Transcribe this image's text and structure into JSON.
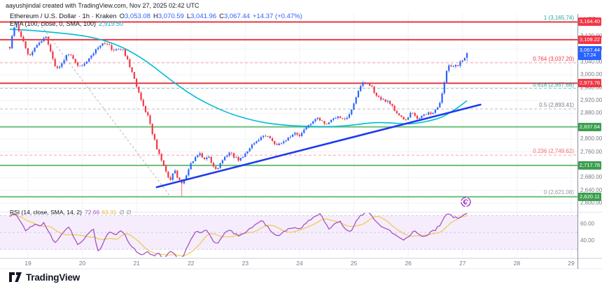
{
  "page": {
    "attribution": "aayushjindal created with TradingView.com, Nov 27, 2025 02:42 UTC",
    "brand": "TradingView"
  },
  "main_legend": {
    "title": "Ethereum / U.S. Dollar · 1h · Kraken",
    "o_label": "O",
    "o": "3,053.08",
    "h_label": "H",
    "h": "3,070.59",
    "l_label": "L",
    "l": "3,041.96",
    "c_label": "C",
    "c": "3,067.44",
    "change": "+14.37 (+0.47%)"
  },
  "ema_legend": {
    "label": "EMA (100, close, 0, SMA, 100)",
    "value": "2,919.50"
  },
  "rsi_legend": {
    "label": "RSI (14, close, SMA, 14, 2)",
    "rsi_value": "72.66",
    "ma_value": "63.31",
    "hidden_values": "∅ ∅"
  },
  "price_scale": {
    "currency": "USD",
    "labels": [
      {
        "text": "3,120.00",
        "price": 3120
      },
      {
        "text": "3,080.00",
        "price": 3080
      },
      {
        "text": "3,040.00",
        "price": 3040
      },
      {
        "text": "3,000.00",
        "price": 3000
      },
      {
        "text": "2,960.00",
        "price": 2960
      },
      {
        "text": "2,920.00",
        "price": 2920
      },
      {
        "text": "2,880.00",
        "price": 2880
      },
      {
        "text": "2,800.00",
        "price": 2800
      },
      {
        "text": "2,760.00",
        "price": 2760
      },
      {
        "text": "2,680.00",
        "price": 2680
      },
      {
        "text": "2,640.00",
        "price": 2640
      },
      {
        "text": "2,600.00",
        "price": 2600
      }
    ],
    "rsi_labels": [
      {
        "text": "60.00",
        "value": 60
      },
      {
        "text": "40.00",
        "value": 40
      }
    ],
    "chips": [
      {
        "text": "3,164.40",
        "price": 3164.4,
        "color": "#f23645"
      },
      {
        "text": "3,109.22",
        "price": 3109.22,
        "color": "#f23645"
      },
      {
        "text": "3,067.44",
        "sub": "17:24",
        "price": 3067.44,
        "color": "#2962ff"
      },
      {
        "text": "2,973.76",
        "price": 2973.76,
        "color": "#f23645"
      },
      {
        "text": "2,837.64",
        "price": 2837.64,
        "color": "#3b9e4f"
      },
      {
        "text": "2,717.78",
        "price": 2717.78,
        "color": "#3b9e4f"
      },
      {
        "text": "2,620.11",
        "price": 2620.11,
        "color": "#3b9e4f"
      }
    ]
  },
  "time_axis": [
    {
      "text": "19",
      "day": 19
    },
    {
      "text": "20",
      "day": 20
    },
    {
      "text": "21",
      "day": 21
    },
    {
      "text": "22",
      "day": 22
    },
    {
      "text": "23",
      "day": 23
    },
    {
      "text": "24",
      "day": 24
    },
    {
      "text": "25",
      "day": 25
    },
    {
      "text": "26",
      "day": 26
    },
    {
      "text": "27",
      "day": 27
    },
    {
      "text": "28",
      "day": 28
    },
    {
      "text": "29",
      "day": 29
    }
  ],
  "chart_data": {
    "type": "candlestick",
    "title": "Ethereum / U.S. Dollar",
    "interval": "1h",
    "exchange": "Kraken",
    "price_axis": {
      "min": 2574,
      "max": 3172,
      "grid_step": 40
    },
    "time_axis_days": [
      18.665,
      29.1
    ],
    "last": {
      "open": 3053.08,
      "high": 3070.59,
      "low": 3041.96,
      "close": 3067.44,
      "change": 14.37,
      "change_pct": 0.47,
      "countdown": "17:24"
    },
    "resistance_levels": [
      3164.4,
      3109.22,
      2973.76
    ],
    "support_levels": [
      2837.64,
      2717.78,
      2620.11
    ],
    "fib_retracement": {
      "baseline": {
        "from_day": 19.2,
        "from_price": 3162,
        "to_day": 21.62,
        "to_price": 2621.08
      },
      "levels": [
        {
          "ratio": "1",
          "price": 3165.74,
          "label": "1 (3,165.74)",
          "text_color": "#26a69a",
          "line_color": "rgba(242,54,69,0.45)"
        },
        {
          "ratio": "0.764",
          "price": 3037.2,
          "label": "0.764 (3,037.20)",
          "text_color": "#f23645",
          "line_color": "rgba(242,54,69,0.45)"
        },
        {
          "ratio": "0.618",
          "price": 2957.68,
          "label": "0.618 (2,957.68)",
          "text_color": "#26a69a",
          "line_color": "rgba(38,166,154,0.55)"
        },
        {
          "ratio": "0.5",
          "price": 2893.41,
          "label": "0.5 (2,893.41)",
          "text_color": "#787b86",
          "line_color": "rgba(120,123,134,0.5)"
        },
        {
          "ratio": "0.236",
          "price": 2749.62,
          "label": "0.236 (2,749.62)",
          "text_color": "#f26a6a",
          "line_color": "rgba(242,54,69,0.45)"
        },
        {
          "ratio": "0",
          "price": 2621.08,
          "label": "0 (2,621.08)",
          "text_color": "#9598a1",
          "line_color": "rgba(120,123,134,0.5)"
        }
      ]
    },
    "trendline": {
      "from_day": 21.37,
      "from_price": 2650,
      "to_day": 27.33,
      "to_price": 2907,
      "color": "#1e3af2"
    },
    "ema": {
      "period": 100,
      "color": "#00bcd4",
      "last_value": 2919.5,
      "points": [
        [
          18.665,
          3142
        ],
        [
          19.1,
          3138
        ],
        [
          19.4,
          3133
        ],
        [
          19.7,
          3128
        ],
        [
          20.0,
          3122
        ],
        [
          20.3,
          3112
        ],
        [
          20.6,
          3096
        ],
        [
          20.9,
          3072
        ],
        [
          21.2,
          3040
        ],
        [
          21.5,
          3000
        ],
        [
          21.8,
          2962
        ],
        [
          22.1,
          2928
        ],
        [
          22.4,
          2902
        ],
        [
          22.7,
          2880
        ],
        [
          23.0,
          2864
        ],
        [
          23.3,
          2852
        ],
        [
          23.6,
          2845
        ],
        [
          23.9,
          2841
        ],
        [
          24.2,
          2839
        ],
        [
          24.5,
          2838
        ],
        [
          24.8,
          2840
        ],
        [
          25.1,
          2846
        ],
        [
          25.4,
          2852
        ],
        [
          25.7,
          2850
        ],
        [
          26.0,
          2846
        ],
        [
          26.2,
          2850
        ],
        [
          26.4,
          2857
        ],
        [
          26.6,
          2866
        ],
        [
          26.8,
          2885
        ],
        [
          26.95,
          2902
        ],
        [
          27.08,
          2919.5
        ]
      ]
    },
    "price_path": [
      [
        18.665,
        3085
      ],
      [
        18.71,
        3122
      ],
      [
        18.75,
        3145
      ],
      [
        18.79,
        3150
      ],
      [
        18.84,
        3128
      ],
      [
        18.9,
        3108
      ],
      [
        18.96,
        3078
      ],
      [
        19.02,
        3058
      ],
      [
        19.08,
        3075
      ],
      [
        19.14,
        3092
      ],
      [
        19.2,
        3098
      ],
      [
        19.27,
        3112
      ],
      [
        19.33,
        3118
      ],
      [
        19.4,
        3080
      ],
      [
        19.48,
        3035
      ],
      [
        19.56,
        3015
      ],
      [
        19.63,
        3040
      ],
      [
        19.7,
        3058
      ],
      [
        19.78,
        3068
      ],
      [
        19.85,
        3045
      ],
      [
        19.93,
        3022
      ],
      [
        20.0,
        3028
      ],
      [
        20.08,
        3045
      ],
      [
        20.16,
        3062
      ],
      [
        20.24,
        3075
      ],
      [
        20.32,
        3090
      ],
      [
        20.42,
        3098
      ],
      [
        20.5,
        3092
      ],
      [
        20.58,
        3072
      ],
      [
        20.66,
        3080
      ],
      [
        20.74,
        3078
      ],
      [
        20.82,
        3052
      ],
      [
        20.9,
        3012
      ],
      [
        20.98,
        2975
      ],
      [
        21.06,
        2935
      ],
      [
        21.14,
        2895
      ],
      [
        21.22,
        2868
      ],
      [
        21.3,
        2812
      ],
      [
        21.38,
        2768
      ],
      [
        21.46,
        2732
      ],
      [
        21.54,
        2695
      ],
      [
        21.62,
        2675
      ],
      [
        21.7,
        2702
      ],
      [
        21.78,
        2672
      ],
      [
        21.84,
        2662
      ],
      [
        21.92,
        2688
      ],
      [
        22.0,
        2722
      ],
      [
        22.08,
        2742
      ],
      [
        22.16,
        2752
      ],
      [
        22.24,
        2738
      ],
      [
        22.32,
        2748
      ],
      [
        22.4,
        2718
      ],
      [
        22.48,
        2706
      ],
      [
        22.56,
        2728
      ],
      [
        22.64,
        2748
      ],
      [
        22.72,
        2756
      ],
      [
        22.8,
        2744
      ],
      [
        22.88,
        2736
      ],
      [
        22.96,
        2748
      ],
      [
        23.05,
        2764
      ],
      [
        23.14,
        2782
      ],
      [
        23.24,
        2800
      ],
      [
        23.34,
        2812
      ],
      [
        23.44,
        2806
      ],
      [
        23.52,
        2788
      ],
      [
        23.6,
        2778
      ],
      [
        23.7,
        2792
      ],
      [
        23.8,
        2806
      ],
      [
        23.9,
        2818
      ],
      [
        24.0,
        2812
      ],
      [
        24.1,
        2828
      ],
      [
        24.2,
        2848
      ],
      [
        24.3,
        2866
      ],
      [
        24.4,
        2854
      ],
      [
        24.5,
        2842
      ],
      [
        24.6,
        2860
      ],
      [
        24.7,
        2872
      ],
      [
        24.8,
        2862
      ],
      [
        24.9,
        2870
      ],
      [
        25.0,
        2908
      ],
      [
        25.08,
        2952
      ],
      [
        25.16,
        2972
      ],
      [
        25.24,
        2980
      ],
      [
        25.32,
        2962
      ],
      [
        25.4,
        2940
      ],
      [
        25.48,
        2928
      ],
      [
        25.56,
        2922
      ],
      [
        25.64,
        2912
      ],
      [
        25.72,
        2896
      ],
      [
        25.8,
        2878
      ],
      [
        25.88,
        2866
      ],
      [
        25.96,
        2858
      ],
      [
        26.04,
        2882
      ],
      [
        26.12,
        2874
      ],
      [
        26.2,
        2862
      ],
      [
        26.28,
        2872
      ],
      [
        26.36,
        2878
      ],
      [
        26.44,
        2882
      ],
      [
        26.52,
        2896
      ],
      [
        26.6,
        2918
      ],
      [
        26.65,
        2962
      ],
      [
        26.7,
        3008
      ],
      [
        26.76,
        3030
      ],
      [
        26.82,
        3026
      ],
      [
        26.88,
        3034
      ],
      [
        26.93,
        3030
      ],
      [
        26.98,
        3042
      ],
      [
        27.03,
        3052
      ],
      [
        27.085,
        3067.44
      ]
    ],
    "wick_high": {
      "day": 18.78,
      "price": 3165.74
    },
    "wick_low": {
      "day": 21.82,
      "price": 2621.08
    },
    "rsi": {
      "color": "#a652c4",
      "ma_color": "#f0c94f",
      "band": [
        30,
        70
      ],
      "mid": 50,
      "last_value": 72.66,
      "last_ma": 63.31,
      "points": [
        [
          18.665,
          69
        ],
        [
          18.73,
          73
        ],
        [
          18.8,
          70
        ],
        [
          18.88,
          60
        ],
        [
          18.96,
          52
        ],
        [
          19.04,
          56
        ],
        [
          19.12,
          60
        ],
        [
          19.2,
          58
        ],
        [
          19.3,
          61
        ],
        [
          19.4,
          48
        ],
        [
          19.5,
          38
        ],
        [
          19.58,
          44
        ],
        [
          19.66,
          52
        ],
        [
          19.76,
          56
        ],
        [
          19.84,
          44
        ],
        [
          19.92,
          36
        ],
        [
          20.0,
          40
        ],
        [
          20.1,
          48
        ],
        [
          20.2,
          55
        ],
        [
          20.28,
          27
        ],
        [
          20.36,
          33
        ],
        [
          20.44,
          45
        ],
        [
          20.52,
          52
        ],
        [
          20.6,
          47
        ],
        [
          20.68,
          52
        ],
        [
          20.76,
          50
        ],
        [
          20.84,
          40
        ],
        [
          20.92,
          32
        ],
        [
          21.0,
          28
        ],
        [
          21.1,
          24
        ],
        [
          21.2,
          27
        ],
        [
          21.3,
          22
        ],
        [
          21.4,
          25
        ],
        [
          21.5,
          19
        ],
        [
          21.6,
          28
        ],
        [
          21.7,
          24
        ],
        [
          21.78,
          17
        ],
        [
          21.86,
          22
        ],
        [
          21.94,
          34
        ],
        [
          22.02,
          45
        ],
        [
          22.1,
          52
        ],
        [
          22.2,
          50
        ],
        [
          22.3,
          53
        ],
        [
          22.4,
          40
        ],
        [
          22.5,
          37
        ],
        [
          22.6,
          47
        ],
        [
          22.7,
          54
        ],
        [
          22.8,
          49
        ],
        [
          22.9,
          46
        ],
        [
          23.0,
          50
        ],
        [
          23.1,
          55
        ],
        [
          23.2,
          60
        ],
        [
          23.3,
          64
        ],
        [
          23.4,
          58
        ],
        [
          23.5,
          49
        ],
        [
          23.6,
          45
        ],
        [
          23.7,
          50
        ],
        [
          23.8,
          54
        ],
        [
          23.9,
          57
        ],
        [
          24.0,
          54
        ],
        [
          24.1,
          60
        ],
        [
          24.2,
          65
        ],
        [
          24.3,
          70
        ],
        [
          24.38,
          73
        ],
        [
          24.46,
          63
        ],
        [
          24.54,
          55
        ],
        [
          24.64,
          59
        ],
        [
          24.74,
          63
        ],
        [
          24.84,
          54
        ],
        [
          24.94,
          51
        ],
        [
          25.04,
          63
        ],
        [
          25.12,
          70
        ],
        [
          25.2,
          73
        ],
        [
          25.28,
          74
        ],
        [
          25.36,
          66
        ],
        [
          25.44,
          60
        ],
        [
          25.52,
          57
        ],
        [
          25.6,
          54
        ],
        [
          25.7,
          50
        ],
        [
          25.8,
          45
        ],
        [
          25.9,
          41
        ],
        [
          26.0,
          44
        ],
        [
          26.1,
          52
        ],
        [
          26.2,
          47
        ],
        [
          26.3,
          44
        ],
        [
          26.4,
          50
        ],
        [
          26.5,
          53
        ],
        [
          26.6,
          60
        ],
        [
          26.68,
          70
        ],
        [
          26.76,
          72
        ],
        [
          26.84,
          68
        ],
        [
          26.92,
          67
        ],
        [
          27.0,
          69
        ],
        [
          27.085,
          72.66
        ]
      ]
    },
    "colors": {
      "up": "#2962ff",
      "down": "#f23645",
      "grid": "#f0f2f7",
      "axis_text": "#787b86",
      "resistance": "#e8393f",
      "support": "#6fc27e",
      "band_fill": "#f5edfb",
      "band_line": "#d8c4e9"
    }
  }
}
